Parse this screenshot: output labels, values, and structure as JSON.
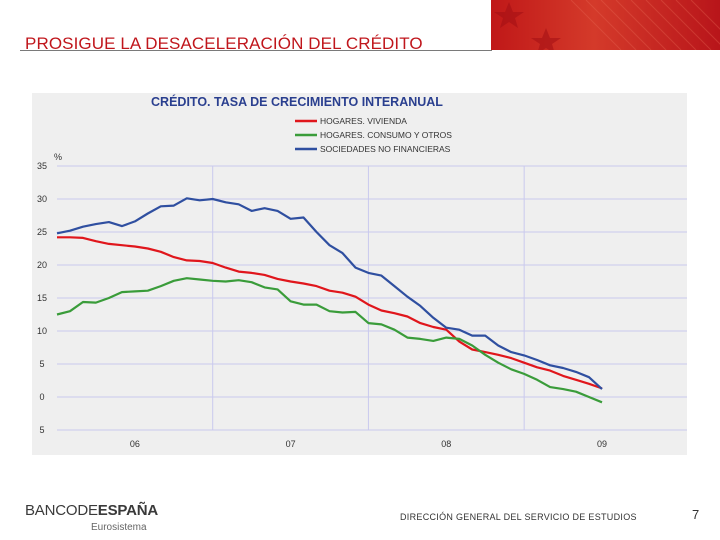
{
  "slide": {
    "title": "PROSIGUE LA DESACELERACIÓN DEL CRÉDITO",
    "brand_color": "#c0161c"
  },
  "footer": {
    "logo_part1": "BANCODE",
    "logo_part2": "ESPAÑA",
    "logo_sub": "Eurosistema",
    "department": "DIRECCIÓN GENERAL DEL SERVICIO DE ESTUDIOS",
    "page_number": "7"
  },
  "chart_data": {
    "type": "line",
    "title": "CRÉDITO. TASA DE CRECIMIENTO INTERANUAL",
    "ylabel": "%",
    "ylim": [
      -5,
      35
    ],
    "yticks": [
      35,
      30,
      25,
      20,
      15,
      10,
      5,
      0,
      -5
    ],
    "ytick_labels": [
      "35",
      "30",
      "25",
      "20",
      "15",
      "10",
      "5",
      "0",
      "5"
    ],
    "xlim": [
      0,
      42
    ],
    "xticks": [
      {
        "pos": 6,
        "label": "06"
      },
      {
        "pos": 18,
        "label": "07"
      },
      {
        "pos": 30,
        "label": "08"
      },
      {
        "pos": 42,
        "label": "09"
      }
    ],
    "vgrid": [
      12,
      24,
      36
    ],
    "series": [
      {
        "name": "HOGARES. VIVIENDA",
        "color": "#e0161c",
        "x": [
          0,
          1,
          2,
          3,
          4,
          5,
          6,
          7,
          8,
          9,
          10,
          11,
          12,
          13,
          14,
          15,
          16,
          17,
          18,
          19,
          20,
          21,
          22,
          23,
          24,
          25,
          26,
          27,
          28,
          29,
          30,
          31,
          32,
          33,
          34,
          35,
          36,
          37,
          38,
          39,
          40,
          41,
          42
        ],
        "values": [
          24.2,
          24.2,
          24.1,
          23.6,
          23.2,
          23.0,
          22.8,
          22.5,
          22.0,
          21.2,
          20.7,
          20.6,
          20.3,
          19.6,
          19.0,
          18.8,
          18.5,
          17.9,
          17.5,
          17.2,
          16.8,
          16.1,
          15.8,
          15.2,
          14.0,
          13.1,
          12.7,
          12.2,
          11.2,
          10.6,
          10.2,
          8.4,
          7.2,
          6.8,
          6.4,
          5.9,
          5.2,
          4.5,
          4.0,
          3.2,
          2.6,
          2.0,
          1.3
        ]
      },
      {
        "name": "HOGARES. CONSUMO Y OTROS",
        "color": "#3a9c3a",
        "x": [
          0,
          1,
          2,
          3,
          4,
          5,
          6,
          7,
          8,
          9,
          10,
          11,
          12,
          13,
          14,
          15,
          16,
          17,
          18,
          19,
          20,
          21,
          22,
          23,
          24,
          25,
          26,
          27,
          28,
          29,
          30,
          31,
          32,
          33,
          34,
          35,
          36,
          37,
          38,
          39,
          40,
          41,
          42
        ],
        "values": [
          12.5,
          13.0,
          14.4,
          14.3,
          15.0,
          15.9,
          16.0,
          16.1,
          16.8,
          17.6,
          18.0,
          17.8,
          17.6,
          17.5,
          17.7,
          17.4,
          16.6,
          16.3,
          14.5,
          14.0,
          14.0,
          13.0,
          12.8,
          12.9,
          11.2,
          11.0,
          10.2,
          9.0,
          8.8,
          8.5,
          9.0,
          8.8,
          7.8,
          6.4,
          5.2,
          4.2,
          3.5,
          2.6,
          1.5,
          1.2,
          0.8,
          0.0,
          -0.8
        ]
      },
      {
        "name": "SOCIEDADES NO FINANCIERAS",
        "color": "#2f4fa0",
        "x": [
          0,
          1,
          2,
          3,
          4,
          5,
          6,
          7,
          8,
          9,
          10,
          11,
          12,
          13,
          14,
          15,
          16,
          17,
          18,
          19,
          20,
          21,
          22,
          23,
          24,
          25,
          26,
          27,
          28,
          29,
          30,
          31,
          32,
          33,
          34,
          35,
          36,
          37,
          38,
          39,
          40,
          41,
          42
        ],
        "values": [
          24.8,
          25.2,
          25.8,
          26.2,
          26.5,
          25.9,
          26.6,
          27.8,
          28.9,
          29.0,
          30.1,
          29.8,
          30.0,
          29.5,
          29.2,
          28.2,
          28.6,
          28.2,
          27.0,
          27.2,
          25.0,
          23.0,
          21.8,
          19.6,
          18.8,
          18.4,
          16.8,
          15.2,
          13.8,
          12.0,
          10.5,
          10.2,
          9.3,
          9.3,
          7.8,
          6.8,
          6.3,
          5.6,
          4.8,
          4.4,
          3.8,
          3.0,
          1.2
        ]
      }
    ]
  }
}
